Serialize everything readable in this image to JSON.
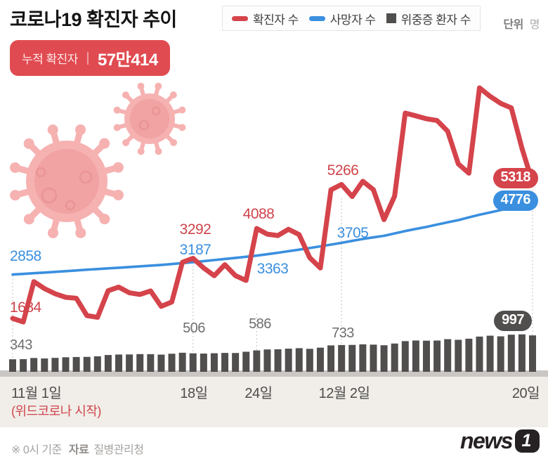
{
  "header": {
    "title": "코로나19 확진자 추이",
    "unit_label": "단위",
    "unit_value": "명",
    "cumulative_label": "누적 확진자",
    "cumulative_value": "57만414"
  },
  "legend": {
    "items": [
      {
        "label": "확진자 수",
        "color": "#d5434b",
        "shape": "line"
      },
      {
        "label": "사망자 수",
        "color": "#3a8fdf",
        "shape": "line"
      },
      {
        "label": "위중증 환자 수",
        "color": "#514e4e",
        "shape": "square"
      }
    ]
  },
  "colors": {
    "confirmed_red": "#d5434b",
    "deaths_blue": "#3a8fdf",
    "critical_dark": "#514e4e",
    "badge_red": "#e04b51",
    "axis_strip": "#f1ede8",
    "baseline": "#c9c6c3",
    "virus_pink": "#f6b1b1"
  },
  "chart_data": {
    "type": "line+bar",
    "title": "코로나19 확진자 추이",
    "x_ticks": [
      {
        "label": "11월 1일",
        "day": 0,
        "sublabel": "(위드코로나 시작)"
      },
      {
        "label": "18일",
        "day": 17
      },
      {
        "label": "24일",
        "day": 23
      },
      {
        "label": "12월 2일",
        "day": 31
      },
      {
        "label": "20일",
        "day": 49
      }
    ],
    "x_range_days": 50,
    "grid": "dashed-vertical-at-ticks",
    "legend_position": "top",
    "series": [
      {
        "name": "확진자 수",
        "type": "line",
        "color": "#d5434b",
        "values": [
          1684,
          1589,
          2667,
          2482,
          2344,
          2248,
          2224,
          1760,
          1715,
          2425,
          2520,
          2368,
          2325,
          2419,
          2006,
          2125,
          3187,
          3292,
          3034,
          2826,
          3120,
          2827,
          2699,
          4088,
          3938,
          3901,
          4068,
          3925,
          3309,
          3032,
          5123,
          5266,
          4944,
          5352,
          5126,
          4325,
          4954,
          7175,
          7102,
          7022,
          6977,
          6689,
          5817,
          5567,
          7850,
          7622,
          7435,
          7314,
          6236,
          5318
        ]
      },
      {
        "name": "사망자 수",
        "type": "line",
        "color": "#3a8fdf",
        "values": [
          2858,
          2874,
          2892,
          2910,
          2929,
          2948,
          2967,
          2986,
          3004,
          3022,
          3040,
          3058,
          3077,
          3096,
          3115,
          3137,
          3163,
          3187,
          3215,
          3245,
          3274,
          3303,
          3333,
          3363,
          3401,
          3440,
          3481,
          3523,
          3566,
          3611,
          3658,
          3705,
          3757,
          3809,
          3852,
          3893,
          3957,
          4020,
          4077,
          4130,
          4194,
          4253,
          4312,
          4387,
          4456,
          4518,
          4580,
          4644,
          4712,
          4776
        ]
      },
      {
        "name": "위중증 환자 수",
        "type": "bar",
        "color": "#514e4e",
        "values": [
          343,
          347,
          378,
          365,
          382,
          398,
          405,
          409,
          425,
          460,
          473,
          475,
          485,
          483,
          471,
          495,
          522,
          506,
          499,
          508,
          517,
          515,
          549,
          586,
          612,
          617,
          634,
          647,
          629,
          661,
          723,
          733,
          736,
          752,
          744,
          727,
          774,
          840,
          857,
          852,
          856,
          894,
          876,
          906,
          964,
          989,
          971,
          1016,
          1025,
          997
        ]
      }
    ],
    "annotations": {
      "confirmed": [
        {
          "day": 0,
          "text": "1684"
        },
        {
          "day": 17,
          "text": "3292"
        },
        {
          "day": 23,
          "text": "4088"
        },
        {
          "day": 31,
          "text": "5266"
        }
      ],
      "deaths": [
        {
          "day": 0,
          "text": "2858"
        },
        {
          "day": 17,
          "text": "3187"
        },
        {
          "day": 23,
          "text": "3363"
        },
        {
          "day": 31,
          "text": "3705"
        }
      ],
      "critical": [
        {
          "day": 0,
          "text": "343"
        },
        {
          "day": 17,
          "text": "506"
        },
        {
          "day": 23,
          "text": "586"
        },
        {
          "day": 31,
          "text": "733"
        }
      ]
    },
    "end_badges": [
      {
        "text": "5318",
        "color": "#d5434b",
        "series": "확진자 수"
      },
      {
        "text": "4776",
        "color": "#3a8fdf",
        "series": "사망자 수"
      },
      {
        "text": "997",
        "color": "#514e4e",
        "series": "위중증 환자 수"
      }
    ]
  },
  "footer": {
    "note_prefix": "※ 0시 기준",
    "source_label": "자료",
    "source_value": "질병관리청",
    "logo_text": "news",
    "logo_number": "1"
  }
}
